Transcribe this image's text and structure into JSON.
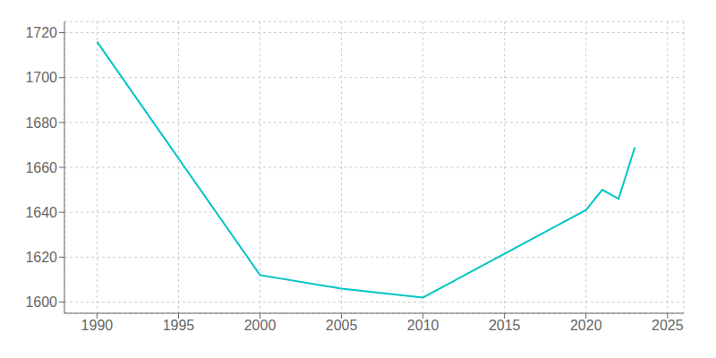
{
  "chart_data": {
    "type": "line",
    "x": [
      1990,
      2000,
      2005,
      2010,
      2020,
      2021,
      2022,
      2023
    ],
    "values": [
      1716,
      1612,
      1606,
      1602,
      1641,
      1650,
      1646,
      1669
    ],
    "color": "#00C5C5",
    "xlim": [
      1988,
      2026
    ],
    "ylim": [
      1595,
      1725
    ],
    "xticks": [
      1990,
      1995,
      2000,
      2005,
      2010,
      2015,
      2020,
      2025
    ],
    "yticks": [
      1600,
      1620,
      1640,
      1660,
      1680,
      1700,
      1720
    ],
    "grid": true
  }
}
